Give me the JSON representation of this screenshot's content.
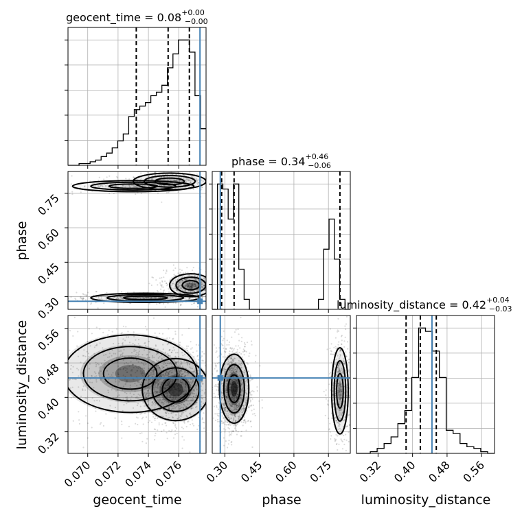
{
  "chart_data": {
    "type": "corner",
    "parameters": [
      {
        "key": "geocent_time",
        "label": "geocent_time",
        "title_label": "geocent_time = ",
        "title_value": "0.08",
        "title_plus": "+0.00",
        "title_minus": "−0.00",
        "range": [
          0.0687,
          0.0778
        ],
        "ticks": [
          "0.070",
          "0.072",
          "0.074",
          "0.076"
        ],
        "tick_values": [
          0.07,
          0.072,
          0.074,
          0.076
        ],
        "truth": 0.0774,
        "quantiles": [
          0.0732,
          0.0753,
          0.0767
        ],
        "hist_edges": [
          0.0687,
          0.0778
        ],
        "hist_counts": [
          0,
          0,
          1,
          1,
          2,
          3,
          5,
          7,
          10,
          14,
          18,
          28,
          32,
          34,
          36,
          40,
          42,
          46,
          56,
          64,
          72,
          72,
          65,
          40,
          21
        ]
      },
      {
        "key": "phase",
        "label": "phase",
        "title_label": "phase = ",
        "title_value": "0.34",
        "title_plus": "+0.46",
        "title_minus": "−0.06",
        "range": [
          0.245,
          0.845
        ],
        "ticks": [
          "0.30",
          "0.45",
          "0.60",
          "0.75"
        ],
        "tick_values": [
          0.3,
          0.45,
          0.6,
          0.75
        ],
        "truth": 0.28,
        "quantiles": [
          0.286,
          0.34,
          0.8
        ],
        "hist_edges": [
          0.245,
          0.845
        ],
        "hist_counts": [
          0,
          25,
          24,
          18,
          25,
          8,
          2,
          0,
          0,
          0,
          0,
          0,
          0,
          0,
          0,
          0,
          0,
          0,
          0,
          0,
          2,
          12,
          18,
          10,
          2,
          0
        ]
      },
      {
        "key": "luminosity_distance",
        "label": "luminosity_distance",
        "title_label": "luminosity_distance = ",
        "title_value": "0.42",
        "title_plus": "+0.04",
        "title_minus": "−0.03",
        "range": [
          0.27,
          0.59
        ],
        "ticks": [
          "0.32",
          "0.40",
          "0.48",
          "0.56"
        ],
        "tick_values": [
          0.32,
          0.4,
          0.48,
          0.56
        ],
        "truth": 0.445,
        "quantiles": [
          0.385,
          0.418,
          0.455
        ],
        "hist_edges": [
          0.27,
          0.59
        ],
        "hist_counts": [
          0,
          0,
          1,
          3,
          6,
          10,
          18,
          26,
          46,
          76,
          74,
          62,
          46,
          14,
          12,
          6,
          4,
          3,
          1,
          0
        ]
      }
    ],
    "truths": {
      "geocent_time": 0.0774,
      "phase": 0.28,
      "luminosity_distance": 0.445
    },
    "colors": {
      "truth": "#4682b4",
      "hist": "#000000",
      "grid": "#b0b0b0",
      "density": "#000000"
    },
    "grid": true,
    "hist2d_modes": {
      "geocent_time-phase": [
        {
          "center": [
            0.0754,
            0.802
          ],
          "spread": [
            0.0012,
            0.018
          ],
          "weight": 0.25
        },
        {
          "center": [
            0.073,
            0.781
          ],
          "spread": [
            0.002,
            0.012
          ],
          "weight": 0.12
        },
        {
          "center": [
            0.0768,
            0.35
          ],
          "spread": [
            0.0007,
            0.025
          ],
          "weight": 0.38
        },
        {
          "center": [
            0.0738,
            0.295
          ],
          "spread": [
            0.0018,
            0.01
          ],
          "weight": 0.25
        }
      ],
      "geocent_time-luminosity_distance": [
        {
          "center": [
            0.0758,
            0.418
          ],
          "spread": [
            0.0011,
            0.036
          ],
          "weight": 0.6
        },
        {
          "center": [
            0.0728,
            0.455
          ],
          "spread": [
            0.0022,
            0.045
          ],
          "weight": 0.4
        }
      ],
      "phase-luminosity_distance": [
        {
          "center": [
            0.34,
            0.42
          ],
          "spread": [
            0.032,
            0.04
          ],
          "weight": 0.7
        },
        {
          "center": [
            0.8,
            0.415
          ],
          "spread": [
            0.018,
            0.05
          ],
          "weight": 0.3
        }
      ]
    }
  }
}
